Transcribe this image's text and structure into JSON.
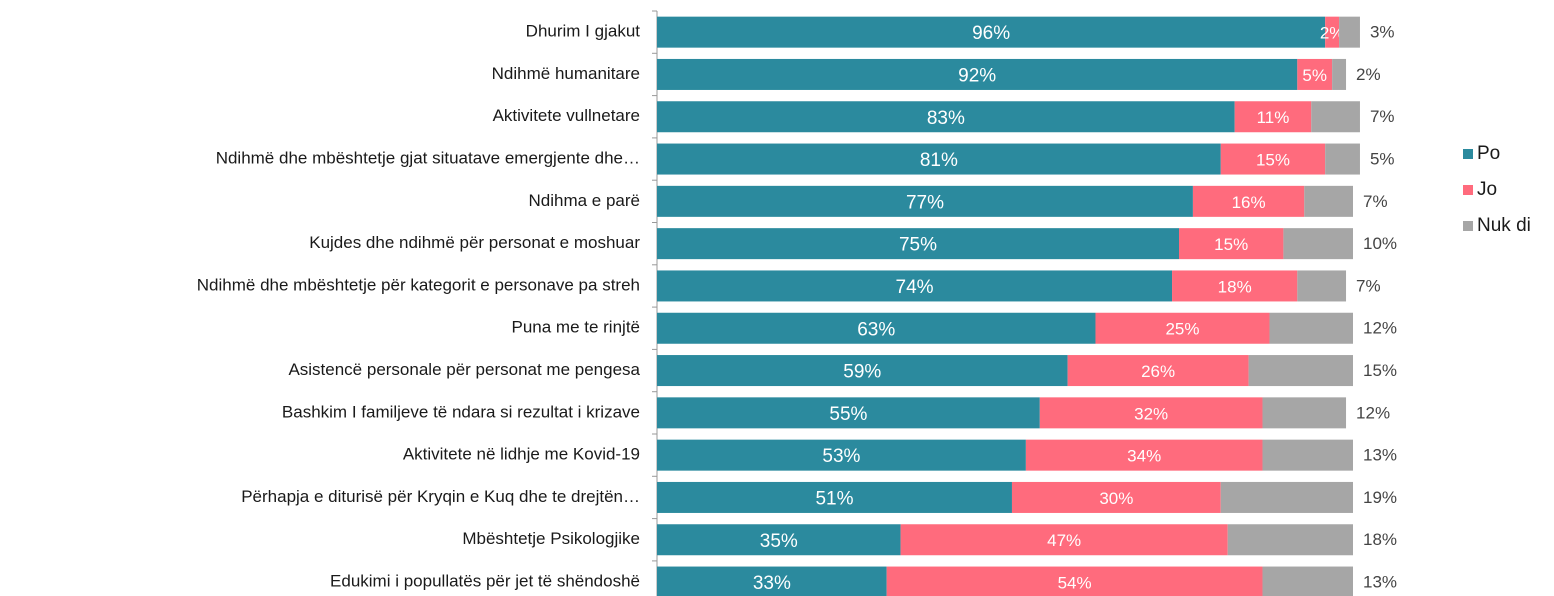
{
  "chart_data": {
    "type": "stacked_bar_horizontal",
    "categories": [
      "Dhurim I gjakut",
      "Ndihmë humanitare",
      "Aktivitete vullnetare",
      "Ndihmë dhe mbështetje gjat situatave emergjente dhe…",
      "Ndihma e parë",
      "Kujdes dhe ndihmë për personat e moshuar",
      "Ndihmë dhe mbështetje për kategorit e personave pa streh",
      "Puna me te rinjtë",
      "Asistencë personale për personat me pengesa",
      "Bashkim I familjeve të ndara si rezultat i krizave",
      "Aktivitete në lidhje me Kovid-19",
      "Përhapja e diturisë për Kryqin e Kuq dhe te drejtën…",
      "Mbështetje Psikologjike",
      "Edukimi i popullatës për jet të shëndoshë"
    ],
    "series": [
      {
        "name": "Po",
        "color": "#2b8a9e",
        "values": [
          96,
          92,
          83,
          81,
          77,
          75,
          74,
          63,
          59,
          55,
          53,
          51,
          35,
          33
        ],
        "value_labels": [
          "96%",
          "92%",
          "83%",
          "81%",
          "77%",
          "75%",
          "74%",
          "63%",
          "59%",
          "55%",
          "53%",
          "51%",
          "35%",
          "33%"
        ]
      },
      {
        "name": "Jo",
        "color": "#ff6b7d",
        "values": [
          2,
          5,
          11,
          15,
          16,
          15,
          18,
          25,
          26,
          32,
          34,
          30,
          47,
          54
        ],
        "value_labels": [
          "2%",
          "5%",
          "11%",
          "15%",
          "16%",
          "15%",
          "18%",
          "25%",
          "26%",
          "32%",
          "34%",
          "30%",
          "47%",
          "54%"
        ]
      },
      {
        "name": "Nuk di",
        "color": "#a6a6a6",
        "values": [
          3,
          2,
          7,
          5,
          7,
          10,
          7,
          12,
          15,
          12,
          13,
          19,
          18,
          13
        ],
        "value_labels": [
          "3%",
          "2%",
          "7%",
          "5%",
          "7%",
          "10%",
          "7%",
          "12%",
          "15%",
          "12%",
          "13%",
          "19%",
          "18%",
          "13%"
        ]
      }
    ],
    "xlim": [
      0,
      100
    ],
    "legend": "right"
  }
}
